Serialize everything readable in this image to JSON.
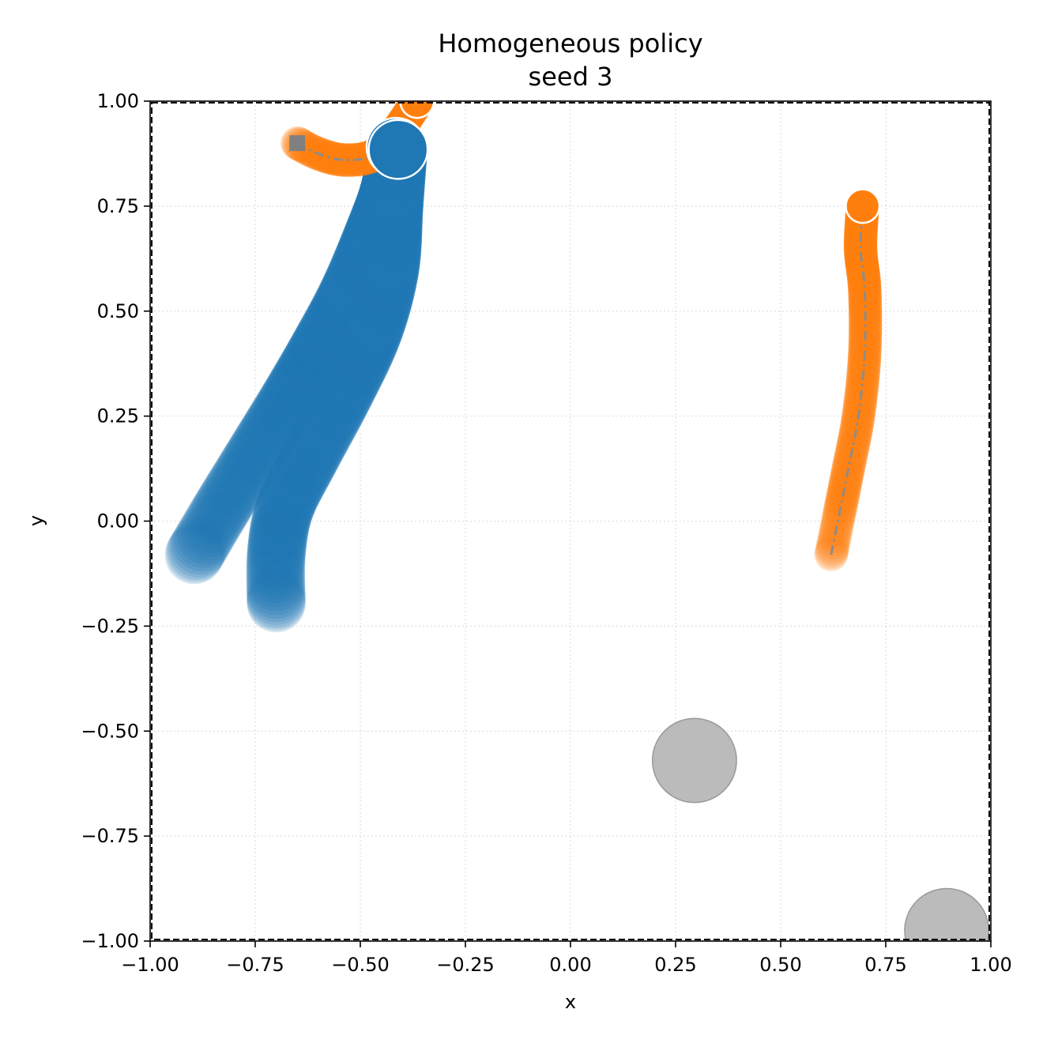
{
  "chart_data": {
    "type": "scatter",
    "title_lines": [
      "Homogeneous policy",
      "seed 3"
    ],
    "xlabel": "x",
    "ylabel": "y",
    "xlim": [
      -1.0,
      1.0
    ],
    "ylim": [
      -1.0,
      1.0
    ],
    "grid": true,
    "x_ticks": [
      -1.0,
      -0.75,
      -0.5,
      -0.25,
      0.0,
      0.25,
      0.5,
      0.75,
      1.0
    ],
    "y_ticks": [
      -1.0,
      -0.75,
      -0.5,
      -0.25,
      0.0,
      0.25,
      0.5,
      0.75,
      1.0
    ],
    "x_tick_labels": [
      "−1.00",
      "−0.75",
      "−0.50",
      "−0.25",
      "0.00",
      "0.25",
      "0.50",
      "0.75",
      "1.00"
    ],
    "y_tick_labels": [
      "−1.00",
      "−0.75",
      "−0.50",
      "−0.25",
      "0.00",
      "0.25",
      "0.50",
      "0.75",
      "1.00"
    ],
    "agents": [
      {
        "color": "#1f77b4",
        "radius": 0.07,
        "path": [
          [
            -0.895,
            -0.08
          ],
          [
            -0.83,
            0.03
          ],
          [
            -0.75,
            0.16
          ],
          [
            -0.67,
            0.29
          ],
          [
            -0.6,
            0.41
          ],
          [
            -0.53,
            0.54
          ],
          [
            -0.47,
            0.68
          ],
          [
            -0.43,
            0.79
          ],
          [
            -0.415,
            0.89
          ]
        ],
        "goal": null
      },
      {
        "color": "#1f77b4",
        "radius": 0.07,
        "path": [
          [
            -0.7,
            -0.195
          ],
          [
            -0.7,
            -0.08
          ],
          [
            -0.68,
            0.03
          ],
          [
            -0.62,
            0.15
          ],
          [
            -0.54,
            0.3
          ],
          [
            -0.47,
            0.45
          ],
          [
            -0.43,
            0.6
          ],
          [
            -0.42,
            0.75
          ],
          [
            -0.41,
            0.885
          ]
        ],
        "goal": null
      },
      {
        "color": "#ff7f0e",
        "radius": 0.04,
        "path": [
          [
            -0.65,
            0.9
          ],
          [
            -0.6,
            0.875
          ],
          [
            -0.54,
            0.86
          ],
          [
            -0.47,
            0.87
          ],
          [
            -0.42,
            0.92
          ],
          [
            -0.39,
            0.96
          ],
          [
            -0.365,
            1.0
          ]
        ],
        "goal": [
          -0.65,
          0.9
        ]
      },
      {
        "color": "#ff7f0e",
        "radius": 0.04,
        "path": [
          [
            0.62,
            -0.08
          ],
          [
            0.64,
            0.02
          ],
          [
            0.66,
            0.12
          ],
          [
            0.685,
            0.25
          ],
          [
            0.7,
            0.4
          ],
          [
            0.7,
            0.55
          ],
          [
            0.69,
            0.65
          ],
          [
            0.695,
            0.75
          ]
        ],
        "goal": [
          0.695,
          0.75
        ]
      }
    ],
    "obstacles": [
      {
        "x": 0.295,
        "y": -0.57,
        "r": 0.1,
        "color": "#bbbbbb"
      },
      {
        "x": 0.895,
        "y": -0.975,
        "r": 0.1,
        "color": "#bbbbbb"
      }
    ],
    "goal_color": "#808080"
  }
}
